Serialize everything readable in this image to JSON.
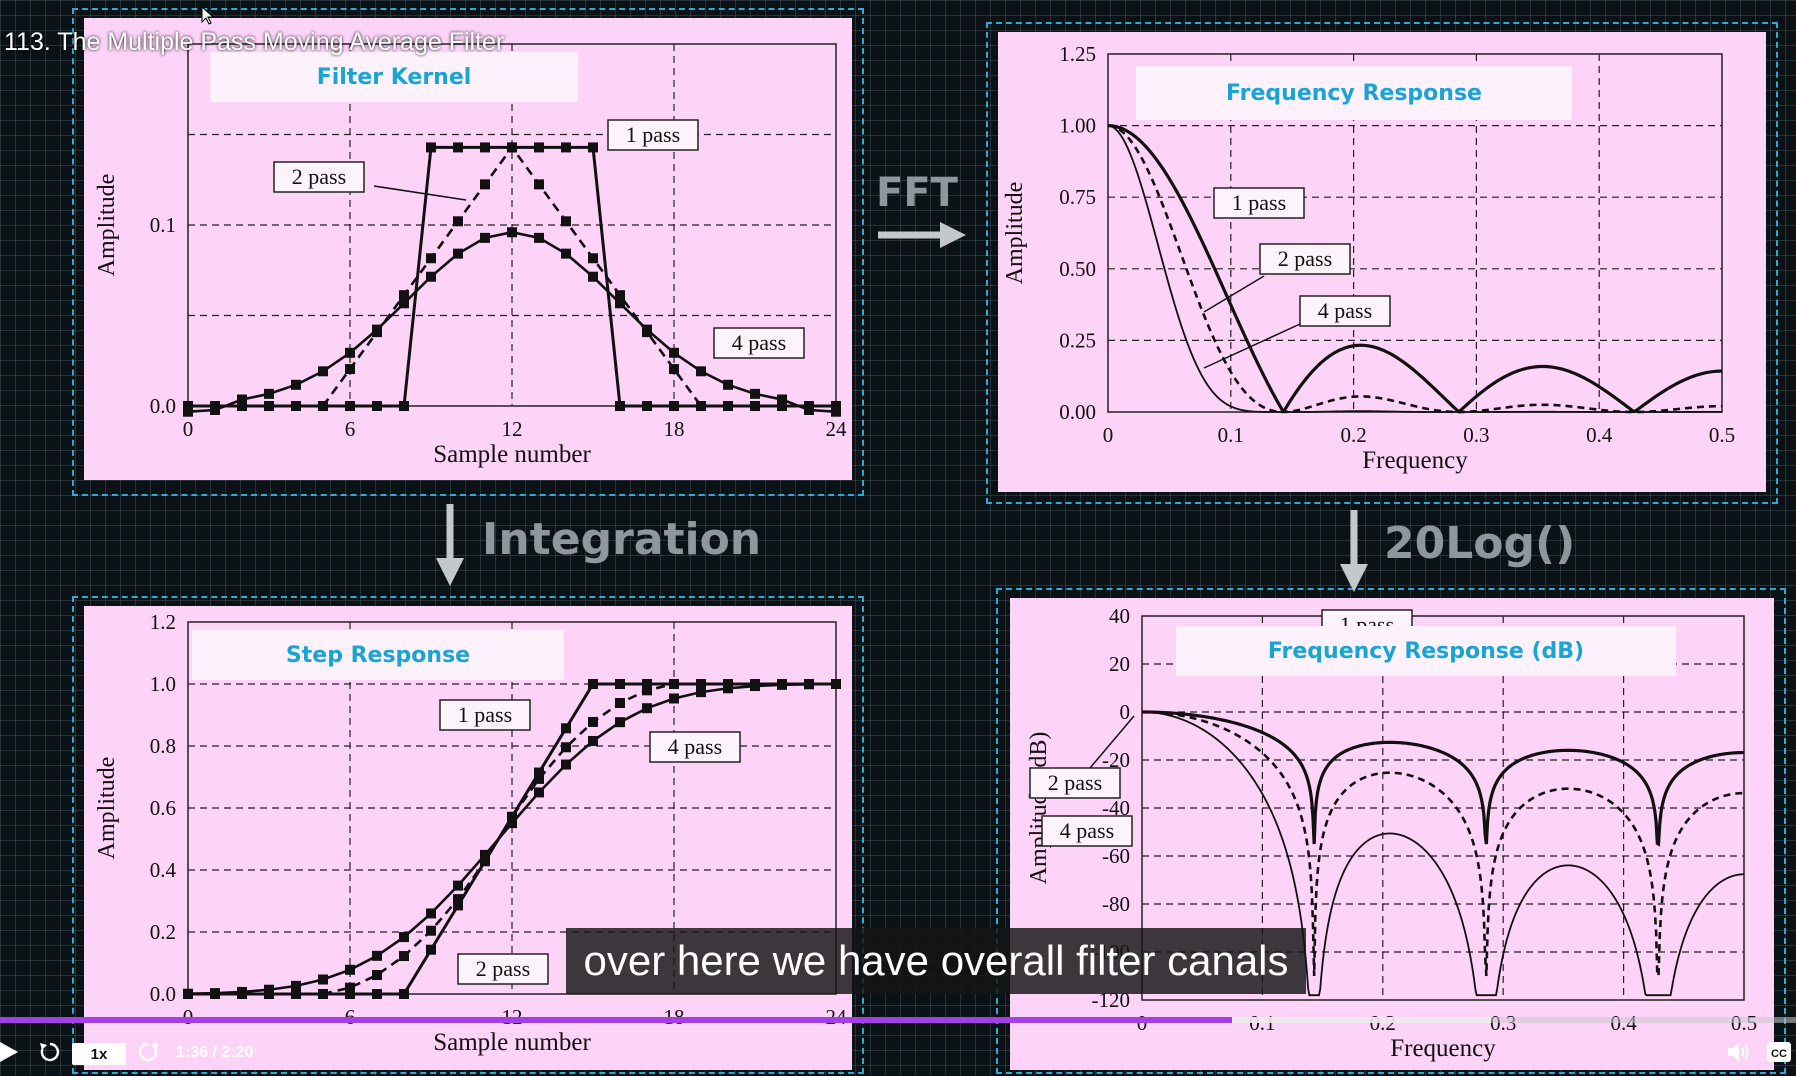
{
  "video": {
    "title": "113. The Multiple Pass Moving Average Filter",
    "caption": "over here we have overall filter canals",
    "speed": "1x",
    "time": "1:36 / 2:20",
    "progress": 0.686,
    "buffered": 0.83,
    "progress_color": "#a43ee6"
  },
  "arrows": {
    "fft": "FFT",
    "integration": "Integration",
    "log": "20Log()"
  },
  "panels": {
    "kernel": {
      "title": "Filter Kernel",
      "xlabel": "Sample number",
      "ylabel": "Amplitude",
      "xticks": [
        "0",
        "6",
        "12",
        "18",
        "24"
      ],
      "yticks": [
        "0.0",
        "0.1"
      ],
      "labels": [
        "1 pass",
        "2 pass",
        "4 pass"
      ]
    },
    "freq": {
      "title": "Frequency Response",
      "xlabel": "Frequency",
      "ylabel": "Amplitude",
      "xticks": [
        "0",
        "0.1",
        "0.2",
        "0.3",
        "0.4",
        "0.5"
      ],
      "yticks": [
        "0.00",
        "0.25",
        "0.50",
        "0.75",
        "1.00",
        "1.25"
      ],
      "labels": [
        "1 pass",
        "2 pass",
        "4 pass"
      ]
    },
    "step": {
      "title": "Step Response",
      "xlabel": "Sample number",
      "ylabel": "Amplitude",
      "xticks": [
        "0",
        "6",
        "12",
        "18",
        "24"
      ],
      "yticks": [
        "0.0",
        "0.2",
        "0.4",
        "0.6",
        "0.8",
        "1.0",
        "1.2"
      ],
      "labels": [
        "1 pass",
        "4 pass",
        "2 pass"
      ]
    },
    "db": {
      "title": "Frequency Response (dB)",
      "xlabel": "Frequency",
      "ylabel": "Amplitude (dB)",
      "xticks": [
        "0",
        "0.1",
        "0.2",
        "0.3",
        "0.4",
        "0.5"
      ],
      "yticks": [
        "40",
        "20",
        "0",
        "-20",
        "-40",
        "-60",
        "-80",
        "-100",
        "-120"
      ],
      "labels": [
        "1 pass",
        "2 pass",
        "4 pass"
      ]
    }
  }
}
